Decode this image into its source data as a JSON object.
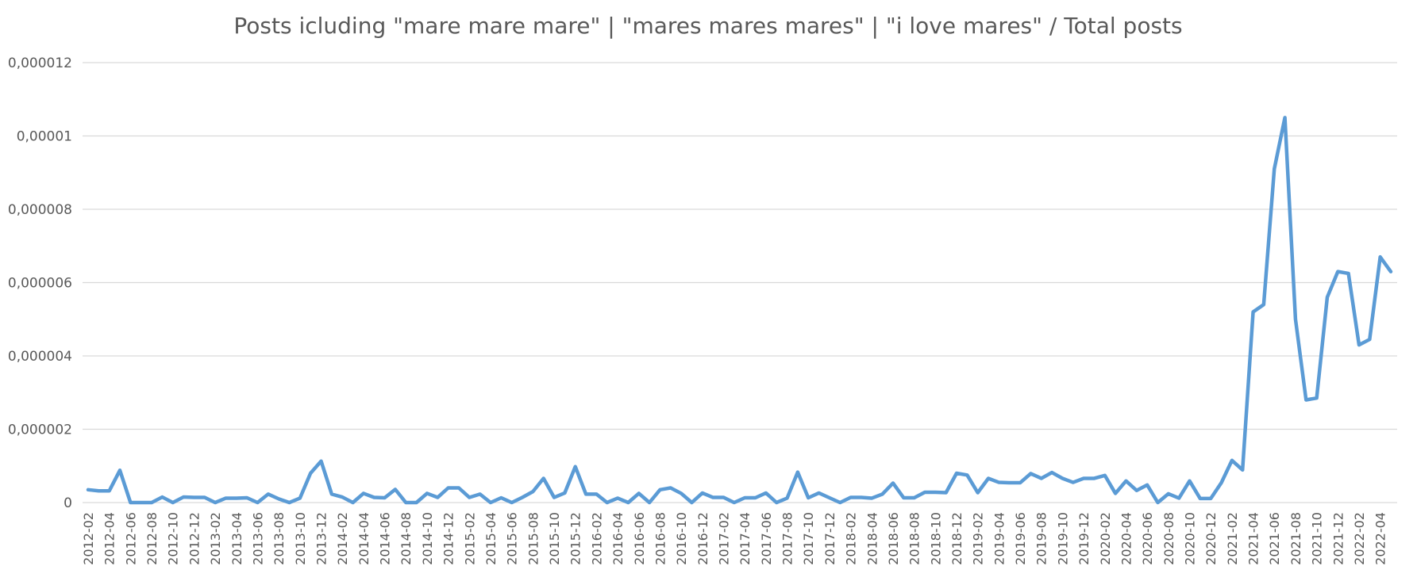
{
  "chart_data": {
    "type": "line",
    "title": "Posts icluding \"mare mare mare\" | \"mares mares mares\" | \"i love mares\" / Total posts",
    "xlabel": "",
    "ylabel": "",
    "ylim": [
      0,
      1.2e-05
    ],
    "yticks": [
      {
        "value": 0,
        "label": "0"
      },
      {
        "value": 2e-06,
        "label": "0,000002"
      },
      {
        "value": 4e-06,
        "label": "0,000004"
      },
      {
        "value": 6e-06,
        "label": "0,000006"
      },
      {
        "value": 8e-06,
        "label": "0,000008"
      },
      {
        "value": 1e-05,
        "label": "0,00001"
      },
      {
        "value": 1.2e-05,
        "label": "0,000012"
      }
    ],
    "grid": true,
    "legend": "none",
    "x": [
      "2012-02",
      "2012-03",
      "2012-04",
      "2012-05",
      "2012-06",
      "2012-07",
      "2012-08",
      "2012-09",
      "2012-10",
      "2012-11",
      "2012-12",
      "2013-01",
      "2013-02",
      "2013-03",
      "2013-04",
      "2013-05",
      "2013-06",
      "2013-07",
      "2013-08",
      "2013-09",
      "2013-10",
      "2013-11",
      "2013-12",
      "2014-01",
      "2014-02",
      "2014-03",
      "2014-04",
      "2014-05",
      "2014-06",
      "2014-07",
      "2014-08",
      "2014-09",
      "2014-10",
      "2014-11",
      "2014-12",
      "2015-01",
      "2015-02",
      "2015-03",
      "2015-04",
      "2015-05",
      "2015-06",
      "2015-07",
      "2015-08",
      "2015-09",
      "2015-10",
      "2015-11",
      "2015-12",
      "2016-01",
      "2016-02",
      "2016-03",
      "2016-04",
      "2016-05",
      "2016-06",
      "2016-07",
      "2016-08",
      "2016-09",
      "2016-10",
      "2016-11",
      "2016-12",
      "2017-01",
      "2017-02",
      "2017-03",
      "2017-04",
      "2017-05",
      "2017-06",
      "2017-07",
      "2017-08",
      "2017-09",
      "2017-10",
      "2017-11",
      "2017-12",
      "2018-01",
      "2018-02",
      "2018-03",
      "2018-04",
      "2018-05",
      "2018-06",
      "2018-07",
      "2018-08",
      "2018-09",
      "2018-10",
      "2018-11",
      "2018-12",
      "2019-01",
      "2019-02",
      "2019-03",
      "2019-04",
      "2019-05",
      "2019-06",
      "2019-07",
      "2019-08",
      "2019-09",
      "2019-10",
      "2019-11",
      "2019-12",
      "2020-01",
      "2020-02",
      "2020-03",
      "2020-04",
      "2020-05",
      "2020-06",
      "2020-07",
      "2020-08",
      "2020-09",
      "2020-10",
      "2020-11",
      "2020-12",
      "2021-01",
      "2021-02",
      "2021-03",
      "2021-04",
      "2021-05",
      "2021-06",
      "2021-07",
      "2021-08",
      "2021-09",
      "2021-10",
      "2021-11",
      "2021-12",
      "2022-01",
      "2022-02",
      "2022-03",
      "2022-04",
      "2022-05"
    ],
    "xtick_labels": [
      "2012-02",
      "2012-04",
      "2012-06",
      "2012-08",
      "2012-10",
      "2012-12",
      "2013-02",
      "2013-04",
      "2013-06",
      "2013-08",
      "2013-10",
      "2013-12",
      "2014-02",
      "2014-04",
      "2014-06",
      "2014-08",
      "2014-10",
      "2014-12",
      "2015-02",
      "2015-04",
      "2015-06",
      "2015-08",
      "2015-10",
      "2015-12",
      "2016-02",
      "2016-04",
      "2016-06",
      "2016-08",
      "2016-10",
      "2016-12",
      "2017-02",
      "2017-04",
      "2017-06",
      "2017-08",
      "2017-10",
      "2017-12",
      "2018-02",
      "2018-04",
      "2018-06",
      "2018-08",
      "2018-10",
      "2018-12",
      "2019-02",
      "2019-04",
      "2019-06",
      "2019-08",
      "2019-10",
      "2019-12",
      "2020-02",
      "2020-04",
      "2020-06",
      "2020-08",
      "2020-10",
      "2020-12",
      "2021-02",
      "2021-04",
      "2021-06",
      "2021-08",
      "2021-10",
      "2021-12",
      "2022-02",
      "2022-04"
    ],
    "color": "#5b9bd5",
    "series": [
      {
        "values": [
          3.5e-07,
          3.2e-07,
          3.2e-07,
          8.8e-07,
          0,
          0,
          0,
          1.5e-07,
          0,
          1.5e-07,
          1.4e-07,
          1.4e-07,
          0,
          1.2e-07,
          1.2e-07,
          1.3e-07,
          0,
          2.3e-07,
          1e-07,
          0,
          1.2e-07,
          8e-07,
          1.13e-06,
          2.3e-07,
          1.5e-07,
          0,
          2.5e-07,
          1.4e-07,
          1.3e-07,
          3.6e-07,
          0,
          0,
          2.5e-07,
          1.4e-07,
          4e-07,
          4e-07,
          1.4e-07,
          2.3e-07,
          0,
          1.3e-07,
          0,
          1.4e-07,
          3e-07,
          6.6e-07,
          1.4e-07,
          2.6e-07,
          9.8e-07,
          2.3e-07,
          2.3e-07,
          0,
          1.2e-07,
          0,
          2.5e-07,
          0,
          3.5e-07,
          4e-07,
          2.5e-07,
          0,
          2.6e-07,
          1.4e-07,
          1.4e-07,
          0,
          1.3e-07,
          1.3e-07,
          2.6e-07,
          0,
          1.2e-07,
          8.3e-07,
          1.3e-07,
          2.6e-07,
          1.3e-07,
          0,
          1.4e-07,
          1.4e-07,
          1.2e-07,
          2.3e-07,
          5.3e-07,
          1.3e-07,
          1.3e-07,
          2.8e-07,
          2.8e-07,
          2.7e-07,
          8e-07,
          7.5e-07,
          2.7e-07,
          6.6e-07,
          5.5e-07,
          5.4e-07,
          5.4e-07,
          7.9e-07,
          6.6e-07,
          8.2e-07,
          6.6e-07,
          5.5e-07,
          6.6e-07,
          6.6e-07,
          7.4e-07,
          2.5e-07,
          5.9e-07,
          3.3e-07,
          4.8e-07,
          0,
          2.4e-07,
          1.2e-07,
          5.9e-07,
          1.1e-07,
          1.1e-07,
          5.4e-07,
          1.15e-06,
          8.9e-07,
          5.2e-06,
          5.4e-06,
          9.1e-06,
          1.05e-05,
          5e-06,
          2.8e-06,
          2.85e-06,
          5.6e-06,
          6.3e-06,
          6.25e-06,
          4.3e-06,
          4.45e-06,
          6.7e-06,
          6.3e-06
        ]
      }
    ]
  }
}
